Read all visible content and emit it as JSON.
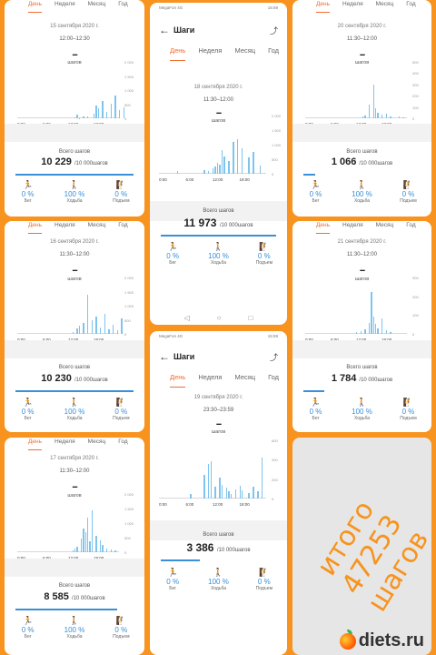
{
  "common": {
    "tabs": [
      "День",
      "Неделя",
      "Месяц",
      "Год"
    ],
    "unit": "шагов",
    "dash": "--",
    "total_label": "Всего шагов",
    "goal": "/10 000шагов",
    "stat_labels": [
      "Бег",
      "Ходьба",
      "Подъем"
    ],
    "stat_values": [
      "0 %",
      "100 %",
      "0 %"
    ],
    "x_ticks": [
      "0:00",
      "6:00",
      "12:00",
      "18:00"
    ],
    "nav_title": "Шаги"
  },
  "panels": [
    {
      "id": "p1",
      "date": "15 сентября 2020 г.",
      "range": "12:00–12:30",
      "total": "10 229",
      "y_ticks": [
        "2 000",
        "1 500",
        "1 000",
        "500",
        "0"
      ],
      "progress": 1.0,
      "chart_data": {
        "type": "bar",
        "x": [
          27,
          28,
          29,
          31,
          33,
          36,
          37,
          38,
          40,
          42,
          44,
          46,
          48,
          50
        ],
        "values": [
          2,
          6,
          0.5,
          3,
          4,
          8,
          22,
          18,
          30,
          12,
          26,
          40,
          14,
          20
        ],
        "ylim": [
          0,
          2000
        ]
      }
    },
    {
      "id": "p2",
      "date": "18 сентября 2020 г.",
      "range": "11:30–12:00",
      "total": "11 973",
      "y_ticks": [
        "2 000",
        "1 500",
        "1 000",
        "500",
        "0"
      ],
      "progress": 1.0,
      "statusbar": {
        "left": "MegaFon 4G",
        "right": "15:59"
      },
      "chart_data": {
        "type": "bar",
        "x": [
          8,
          20,
          22,
          24,
          25,
          26,
          27,
          28,
          29,
          31,
          33,
          35,
          37,
          40,
          42,
          45
        ],
        "values": [
          5,
          6,
          4,
          10,
          12,
          18,
          16,
          40,
          30,
          22,
          55,
          60,
          44,
          28,
          38,
          14
        ],
        "ylim": [
          0,
          2000
        ]
      }
    },
    {
      "id": "p3",
      "date": "20 сентября 2020 г.",
      "range": "11:30–12:00",
      "total": "1 066",
      "y_ticks": [
        "500",
        "400",
        "300",
        "200",
        "100",
        "0"
      ],
      "progress": 0.1,
      "chart_data": {
        "type": "bar",
        "x": [
          27,
          28,
          30,
          32,
          33,
          34,
          36,
          38,
          40,
          44,
          46
        ],
        "values": [
          3,
          5,
          25,
          60,
          18,
          10,
          6,
          8,
          4,
          3,
          2
        ],
        "ylim": [
          0,
          500
        ]
      }
    },
    {
      "id": "p4",
      "date": "16 сентября 2020 г.",
      "range": "11:30–12:00",
      "total": "10 230",
      "y_ticks": [
        "2 000",
        "1 500",
        "1 000",
        "500",
        "0"
      ],
      "progress": 1.0,
      "chart_data": {
        "type": "bar",
        "x": [
          26,
          28,
          29,
          31,
          33,
          35,
          37,
          39,
          41,
          43,
          45,
          47,
          49
        ],
        "values": [
          4,
          10,
          14,
          20,
          70,
          24,
          30,
          12,
          36,
          8,
          16,
          6,
          28
        ],
        "ylim": [
          0,
          2000
        ]
      }
    },
    {
      "id": "p5",
      "date": "21 сентября 2020 г.",
      "range": "11:30–12:00",
      "total": "1 784",
      "y_ticks": [
        "300",
        "200",
        "100",
        "0"
      ],
      "progress": 0.18,
      "chart_data": {
        "type": "bar",
        "x": [
          24,
          26,
          28,
          30,
          31,
          32,
          33,
          34,
          36,
          38,
          40
        ],
        "values": [
          3,
          5,
          8,
          20,
          74,
          30,
          18,
          10,
          28,
          6,
          4
        ],
        "ylim": [
          0,
          300
        ]
      }
    },
    {
      "id": "p6",
      "date": "19 сентября 2020 г.",
      "range": "23:30–23:59",
      "total": "3 386",
      "y_ticks": [
        "600",
        "400",
        "200",
        "0"
      ],
      "progress": 0.34,
      "statusbar": {
        "left": "MegaFon 4G",
        "right": "15:59"
      },
      "chart_data": {
        "type": "bar",
        "x": [
          14,
          20,
          22,
          23,
          25,
          27,
          28,
          30,
          31,
          32,
          34,
          36,
          37,
          40,
          42,
          44,
          46
        ],
        "values": [
          8,
          40,
          60,
          64,
          20,
          36,
          24,
          18,
          12,
          8,
          16,
          22,
          14,
          10,
          20,
          12,
          70
        ],
        "ylim": [
          0,
          600
        ]
      }
    },
    {
      "id": "p7",
      "date": "17 сентября 2020 г.",
      "range": "11:30–12:00",
      "total": "8 585",
      "y_ticks": [
        "2 000",
        "1 500",
        "1 000",
        "500",
        "0"
      ],
      "progress": 0.86,
      "chart_data": {
        "type": "bar",
        "x": [
          26,
          27,
          28,
          30,
          31,
          32,
          33,
          34,
          35,
          37,
          39,
          40,
          42,
          44,
          46
        ],
        "values": [
          3,
          6,
          10,
          24,
          40,
          34,
          60,
          18,
          72,
          28,
          20,
          12,
          6,
          4,
          3
        ],
        "ylim": [
          0,
          2000
        ]
      }
    }
  ],
  "final": {
    "text_line1": "итого 47253",
    "text_line2": "шагов",
    "logo_text": "diets.ru"
  }
}
